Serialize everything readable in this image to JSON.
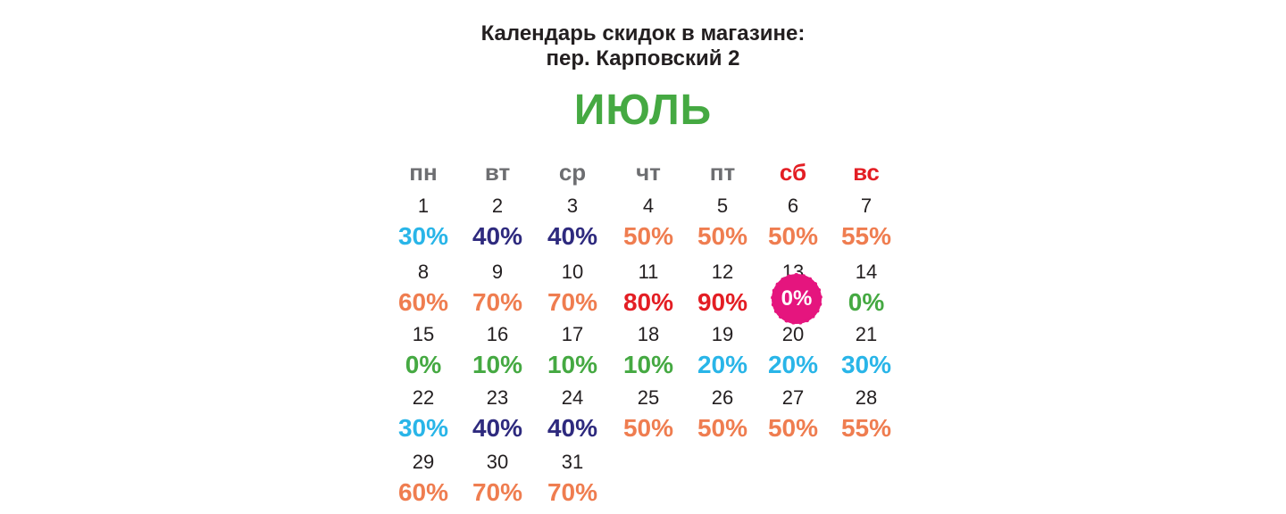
{
  "header": {
    "title_line1": "Календарь скидок в магазине:",
    "title_line2": "пер. Карповский 2",
    "month": "ИЮЛЬ"
  },
  "colors": {
    "text": "#231f20",
    "weekday": "#6d6e71",
    "weekend": "#e31e24",
    "month": "#45a942",
    "green": "#45a942",
    "cyan": "#29b5e8",
    "navy": "#2e2a7e",
    "orange": "#ef7d50",
    "red": "#e31e24",
    "badge": "#e5157e"
  },
  "weekdays": [
    {
      "label": "пн",
      "color": "weekday"
    },
    {
      "label": "вт",
      "color": "weekday"
    },
    {
      "label": "ср",
      "color": "weekday"
    },
    {
      "label": "чт",
      "color": "weekday"
    },
    {
      "label": "пт",
      "color": "weekday"
    },
    {
      "label": "сб",
      "color": "weekend"
    },
    {
      "label": "вс",
      "color": "weekend"
    }
  ],
  "days": [
    {
      "day": "1",
      "discount": "30%",
      "color": "cyan"
    },
    {
      "day": "2",
      "discount": "40%",
      "color": "navy"
    },
    {
      "day": "3",
      "discount": "40%",
      "color": "navy"
    },
    {
      "day": "4",
      "discount": "50%",
      "color": "orange"
    },
    {
      "day": "5",
      "discount": "50%",
      "color": "orange"
    },
    {
      "day": "6",
      "discount": "50%",
      "color": "orange"
    },
    {
      "day": "7",
      "discount": "55%",
      "color": "orange"
    },
    {
      "day": "8",
      "discount": "60%",
      "color": "orange"
    },
    {
      "day": "9",
      "discount": "70%",
      "color": "orange"
    },
    {
      "day": "10",
      "discount": "70%",
      "color": "orange"
    },
    {
      "day": "11",
      "discount": "80%",
      "color": "red"
    },
    {
      "day": "12",
      "discount": "90%",
      "color": "red"
    },
    {
      "day": "13",
      "discount": "0%",
      "color": "badge",
      "badge": true
    },
    {
      "day": "14",
      "discount": "0%",
      "color": "green"
    },
    {
      "day": "15",
      "discount": "0%",
      "color": "green"
    },
    {
      "day": "16",
      "discount": "10%",
      "color": "green"
    },
    {
      "day": "17",
      "discount": "10%",
      "color": "green"
    },
    {
      "day": "18",
      "discount": "10%",
      "color": "green"
    },
    {
      "day": "19",
      "discount": "20%",
      "color": "cyan"
    },
    {
      "day": "20",
      "discount": "20%",
      "color": "cyan"
    },
    {
      "day": "21",
      "discount": "30%",
      "color": "cyan"
    },
    {
      "day": "22",
      "discount": "30%",
      "color": "cyan"
    },
    {
      "day": "23",
      "discount": "40%",
      "color": "navy"
    },
    {
      "day": "24",
      "discount": "40%",
      "color": "navy"
    },
    {
      "day": "25",
      "discount": "50%",
      "color": "orange"
    },
    {
      "day": "26",
      "discount": "50%",
      "color": "orange"
    },
    {
      "day": "27",
      "discount": "50%",
      "color": "orange"
    },
    {
      "day": "28",
      "discount": "55%",
      "color": "orange"
    },
    {
      "day": "29",
      "discount": "60%",
      "color": "orange"
    },
    {
      "day": "30",
      "discount": "70%",
      "color": "orange"
    },
    {
      "day": "31",
      "discount": "70%",
      "color": "orange"
    }
  ]
}
